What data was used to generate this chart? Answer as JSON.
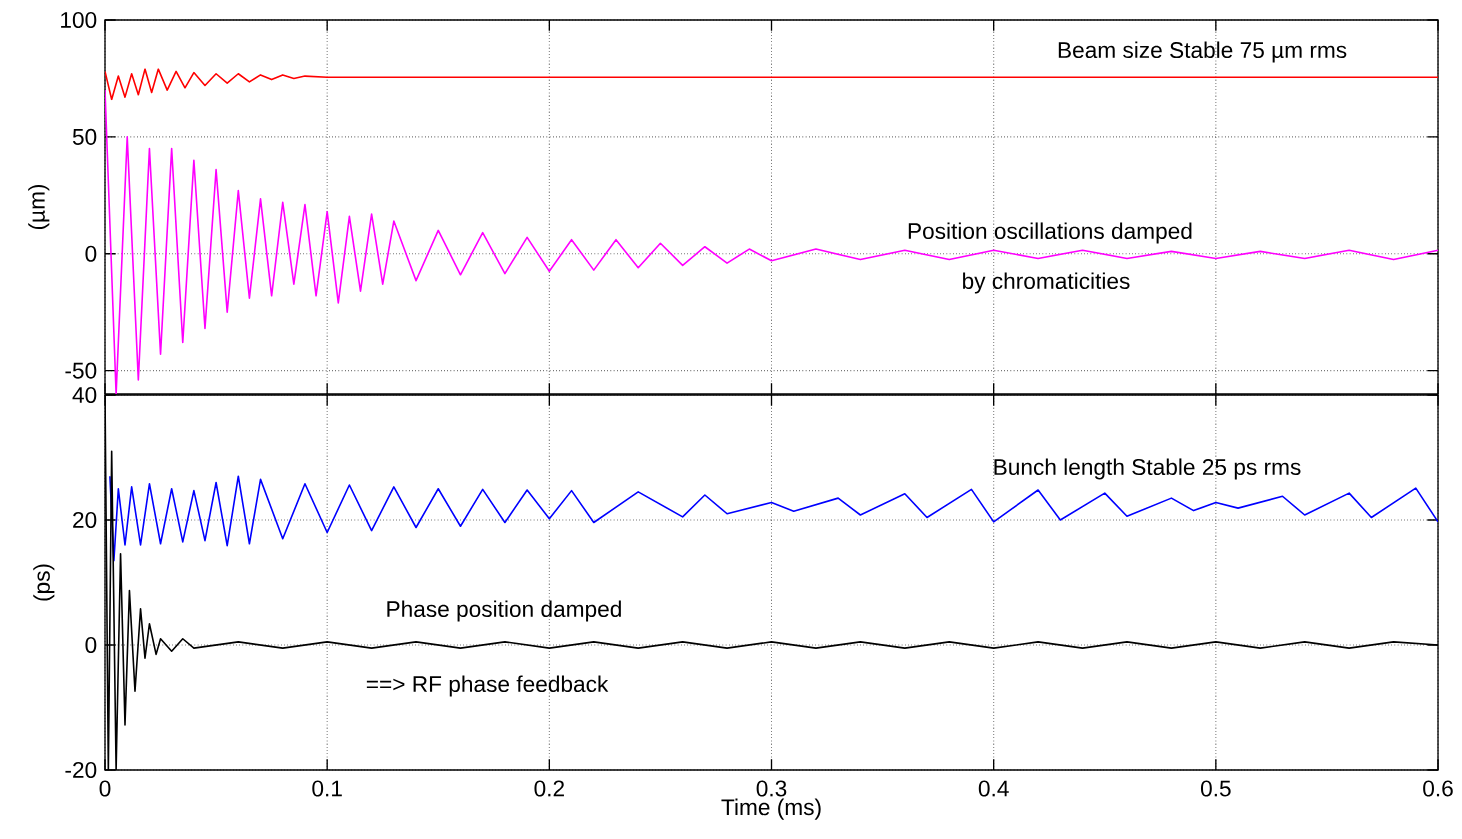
{
  "chart_data": [
    {
      "type": "line",
      "ylabel": "(µm)",
      "xlim": [
        0,
        0.6
      ],
      "ylim": [
        -60,
        100
      ],
      "xticks": [
        0,
        0.1,
        0.2,
        0.3,
        0.4,
        0.5,
        0.6
      ],
      "yticks": [
        -50,
        0,
        50,
        100
      ],
      "tick_labels": "y",
      "grid": true,
      "marker": "none",
      "line_style": "solid",
      "series": [
        {
          "color": "#ff00ff",
          "x": [
            0,
            0.005,
            0.01,
            0.015,
            0.02,
            0.025,
            0.03,
            0.035,
            0.04,
            0.045,
            0.05,
            0.055,
            0.06,
            0.065,
            0.07,
            0.075,
            0.08,
            0.085,
            0.09,
            0.095,
            0.1,
            0.105,
            0.11,
            0.115,
            0.12,
            0.125,
            0.13,
            0.14,
            0.15,
            0.16,
            0.17,
            0.18,
            0.19,
            0.2,
            0.21,
            0.22,
            0.23,
            0.24,
            0.25,
            0.26,
            0.27,
            0.28,
            0.29,
            0.3,
            0.32,
            0.34,
            0.36,
            0.38,
            0.4,
            0.42,
            0.44,
            0.46,
            0.48,
            0.5,
            0.52,
            0.54,
            0.56,
            0.58,
            0.6
          ],
          "values": [
            70,
            -60,
            50,
            -54,
            45,
            -43,
            45,
            -38,
            40,
            -32,
            36,
            -25,
            27,
            -19,
            23.5,
            -18,
            22,
            -13,
            21,
            -18,
            18,
            -21,
            16,
            -16,
            17,
            -13,
            14,
            -11.5,
            10,
            -9,
            9,
            -8.5,
            7,
            -7.5,
            6,
            -7,
            6,
            -6,
            4.5,
            -5,
            3,
            -4,
            2,
            -3,
            2,
            -2.5,
            1.5,
            -2.5,
            1.5,
            -2,
            1.5,
            -2,
            1,
            -2,
            1,
            -2,
            1.5,
            -2.5,
            1.5
          ]
        },
        {
          "color": "#ff0000",
          "x": [
            0,
            0.003,
            0.006,
            0.009,
            0.012,
            0.015,
            0.018,
            0.021,
            0.024,
            0.028,
            0.032,
            0.036,
            0.04,
            0.045,
            0.05,
            0.055,
            0.06,
            0.065,
            0.07,
            0.075,
            0.08,
            0.085,
            0.09,
            0.1,
            0.6
          ],
          "values": [
            78,
            66,
            76,
            67,
            77,
            68,
            79,
            69,
            79,
            70,
            78,
            71,
            77.5,
            72,
            77,
            73,
            77,
            73.5,
            76.5,
            74.5,
            76.5,
            75,
            76,
            75.5,
            75.5
          ]
        }
      ],
      "annotations": [
        "Beam size Stable 75 µm rms",
        "Position oscillations damped",
        "by chromaticities"
      ]
    },
    {
      "type": "line",
      "xlabel": "Time (ms)",
      "ylabel": "(ps)",
      "xlim": [
        0,
        0.6
      ],
      "ylim": [
        -20,
        40
      ],
      "xticks": [
        0,
        0.1,
        0.2,
        0.3,
        0.4,
        0.5,
        0.6
      ],
      "yticks": [
        -20,
        0,
        20,
        40
      ],
      "grid": true,
      "marker": "none",
      "line_style": "solid",
      "series": [
        {
          "color": "#0000ff",
          "x": [
            0.0022,
            0.004,
            0.006,
            0.009,
            0.012,
            0.016,
            0.02,
            0.025,
            0.03,
            0.035,
            0.04,
            0.045,
            0.05,
            0.055,
            0.06,
            0.065,
            0.07,
            0.08,
            0.09,
            0.1,
            0.11,
            0.12,
            0.13,
            0.14,
            0.15,
            0.16,
            0.17,
            0.18,
            0.19,
            0.2,
            0.21,
            0.22,
            0.24,
            0.26,
            0.27,
            0.28,
            0.3,
            0.31,
            0.33,
            0.34,
            0.36,
            0.37,
            0.39,
            0.4,
            0.42,
            0.43,
            0.45,
            0.46,
            0.48,
            0.49,
            0.5,
            0.51,
            0.53,
            0.54,
            0.56,
            0.57,
            0.59,
            0.6
          ],
          "values": [
            27,
            13.5,
            25,
            16,
            25.3,
            16,
            25.8,
            16.2,
            25,
            16.5,
            24.7,
            16.7,
            26,
            15.9,
            27,
            16.2,
            26.5,
            17,
            25.8,
            18,
            25.6,
            18.3,
            25.3,
            18.8,
            25,
            19,
            24.9,
            19.6,
            24.8,
            20.2,
            24.7,
            19.6,
            24.5,
            20.5,
            24,
            21,
            22.8,
            21.4,
            23.5,
            20.8,
            24.2,
            20.4,
            24.9,
            19.7,
            24.8,
            20,
            24.3,
            20.6,
            23.5,
            21.5,
            22.8,
            21.9,
            23.8,
            20.8,
            24.3,
            20.4,
            25.1,
            19.7
          ]
        },
        {
          "color": "#000000",
          "x": [
            0,
            0.0015,
            0.003,
            0.005,
            0.007,
            0.009,
            0.011,
            0.0135,
            0.016,
            0.018,
            0.02,
            0.023,
            0.025,
            0.03,
            0.035,
            0.04,
            0.06,
            0.08,
            0.1,
            0.12,
            0.14,
            0.16,
            0.18,
            0.2,
            0.22,
            0.24,
            0.26,
            0.28,
            0.3,
            0.32,
            0.34,
            0.36,
            0.38,
            0.4,
            0.42,
            0.44,
            0.46,
            0.48,
            0.5,
            0.52,
            0.54,
            0.56,
            0.58,
            0.6
          ],
          "values": [
            40,
            -20,
            31,
            -20,
            14.6,
            -12.8,
            8.7,
            -7.4,
            5.8,
            -2.1,
            3.4,
            -1.5,
            1,
            -1,
            1,
            -0.5,
            0.5,
            -0.5,
            0.5,
            -0.5,
            0.5,
            -0.5,
            0.5,
            -0.5,
            0.5,
            -0.5,
            0.5,
            -0.5,
            0.5,
            -0.5,
            0.5,
            -0.5,
            0.5,
            -0.5,
            0.5,
            -0.5,
            0.5,
            -0.5,
            0.5,
            -0.5,
            0.5,
            -0.5,
            0.5,
            0
          ]
        }
      ],
      "annotations": [
        "Bunch length Stable 25 ps rms",
        "Phase position damped",
        "==> RF phase feedback"
      ]
    }
  ]
}
